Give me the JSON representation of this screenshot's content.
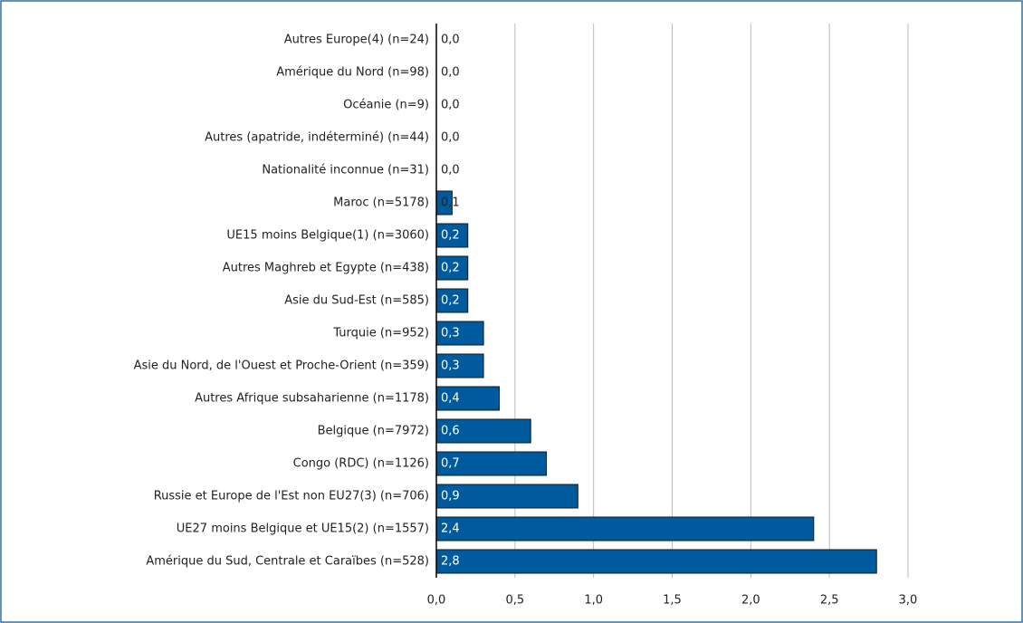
{
  "chart_data": {
    "type": "bar",
    "orientation": "horizontal",
    "categories": [
      "Autres Europe(4) (n=24)",
      "Amérique du Nord (n=98)",
      "Océanie (n=9)",
      "Autres (apatride, indéterminé) (n=44)",
      "Nationalité inconnue (n=31)",
      "Maroc (n=5178)",
      "UE15 moins Belgique(1) (n=3060)",
      "Autres Maghreb et Egypte (n=438)",
      "Asie du Sud-Est (n=585)",
      "Turquie (n=952)",
      "Asie du Nord, de l'Ouest et Proche-Orient (n=359)",
      "Autres Afrique subsaharienne (n=1178)",
      "Belgique (n=7972)",
      "Congo (RDC) (n=1126)",
      "Russie et Europe de l'Est non EU27(3) (n=706)",
      "UE27 moins Belgique et UE15(2) (n=1557)",
      "Amérique du Sud, Centrale et Caraïbes (n=528)"
    ],
    "values": [
      0,
      0,
      0,
      0,
      0,
      0.1,
      0.2,
      0.2,
      0.2,
      0.3,
      0.3,
      0.4,
      0.6,
      0.7,
      0.9,
      2.4,
      2.8
    ],
    "value_labels": [
      "0,0",
      "0,0",
      "0,0",
      "0,0",
      "0,0",
      "0,1",
      "0,2",
      "0,2",
      "0,2",
      "0,3",
      "0,3",
      "0,4",
      "0,6",
      "0,7",
      "0,9",
      "2,4",
      "2,8"
    ],
    "color": "#005a9e",
    "xlim": [
      0,
      3
    ],
    "xticks": [
      {
        "value": 0,
        "label": "0,0"
      },
      {
        "value": 0.5,
        "label": "0,5"
      },
      {
        "value": 1,
        "label": "1,0"
      },
      {
        "value": 1.5,
        "label": "1,5"
      },
      {
        "value": 2,
        "label": "2,0"
      },
      {
        "value": 2.5,
        "label": "2,5"
      },
      {
        "value": 3,
        "label": "3,0"
      }
    ],
    "grid": true
  }
}
